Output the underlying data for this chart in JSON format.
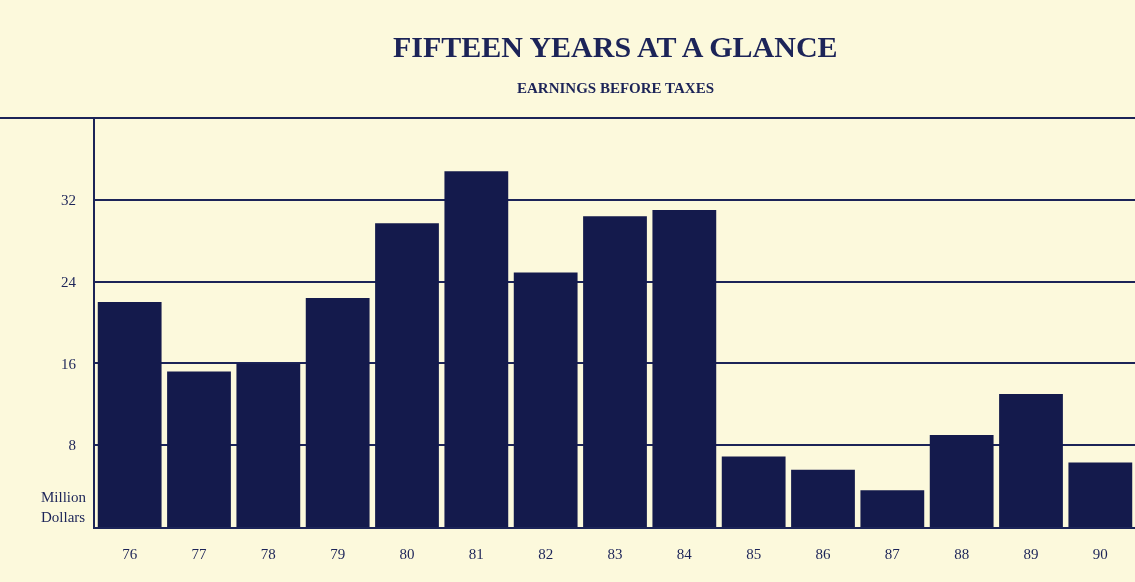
{
  "chart_data": {
    "type": "bar",
    "title": "FIFTEEN YEARS AT A GLANCE",
    "subtitle": "EARNINGS BEFORE TAXES",
    "ylabel": "Million Dollars",
    "categories": [
      "76",
      "77",
      "78",
      "79",
      "80",
      "81",
      "82",
      "83",
      "84",
      "85",
      "86",
      "87",
      "88",
      "89",
      "90"
    ],
    "values": [
      22.0,
      15.2,
      16.0,
      22.4,
      29.7,
      34.8,
      24.9,
      30.4,
      31.0,
      6.9,
      5.6,
      3.6,
      9.0,
      13.0,
      6.3
    ],
    "color": "#141a4c",
    "ylim": [
      0,
      40
    ],
    "yticks": [
      8,
      16,
      24,
      32
    ],
    "grid": "y",
    "legend": false
  }
}
